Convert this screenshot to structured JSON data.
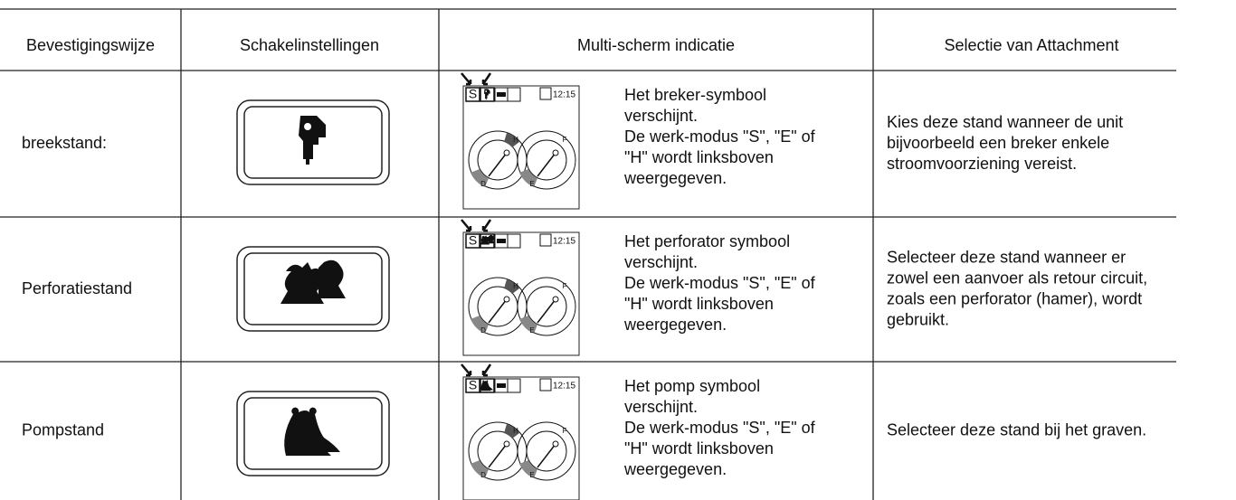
{
  "header": [
    "Bevestigingswijze",
    "Schakelinstellingen",
    "Multi-scherm indicatie",
    "Selectie van Attachment"
  ],
  "rows": [
    {
      "mode": "breekstand:",
      "display": {
        "mode": "S",
        "time": "12:15",
        "gauge_labels": [
          "H",
          "D",
          "F",
          "E"
        ]
      },
      "indication": [
        "Het breker-symbool",
        "verschijnt.",
        "De werk-modus \"S\", \"E\" of",
        "\"H\" wordt linksboven",
        "weergegeven."
      ],
      "selection": [
        "Kies deze stand wanneer de unit",
        "bijvoorbeeld een breker enkele",
        "stroomvoorziening vereist."
      ]
    },
    {
      "mode": "Perforatiestand",
      "display": {
        "mode": "S",
        "time": "12:15",
        "gauge_labels": [
          "H",
          "D",
          "F",
          "E"
        ]
      },
      "indication": [
        "Het perforator symbool",
        "verschijnt.",
        "De werk-modus \"S\", \"E\" of",
        "\"H\" wordt linksboven",
        "weergegeven."
      ],
      "selection": [
        "Selecteer deze stand wanneer er",
        "zowel een aanvoer als retour circuit,",
        "zoals een perforator (hamer), wordt",
        "gebruikt."
      ]
    },
    {
      "mode": "Pompstand",
      "display": {
        "mode": "S",
        "time": "12:15",
        "gauge_labels": [
          "H",
          "D",
          "F",
          "E"
        ]
      },
      "indication": [
        "Het pomp symbool",
        "verschijnt.",
        "De werk-modus \"S\", \"E\" of",
        "\"H\" wordt linksboven",
        "weergegeven."
      ],
      "selection": [
        "Selecteer deze stand bij het graven."
      ]
    }
  ]
}
